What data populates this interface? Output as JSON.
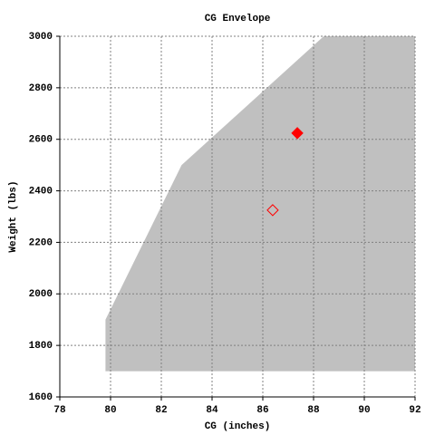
{
  "chart_data": {
    "type": "scatter",
    "title": "CG Envelope",
    "xlabel": "CG (inches)",
    "ylabel": "Weight (lbs)",
    "xlim": [
      78,
      92
    ],
    "ylim": [
      1600,
      3000
    ],
    "xticks": [
      78,
      80,
      82,
      84,
      86,
      88,
      90,
      92
    ],
    "yticks": [
      1600,
      1800,
      2000,
      2200,
      2400,
      2600,
      2800,
      3000
    ],
    "grid": true,
    "series": [
      {
        "style": "polygon",
        "color": "#c0c0c0",
        "x": [
          79.8,
          79.8,
          82.8,
          88.4,
          92,
          92
        ],
        "values": [
          1700,
          1900,
          2500,
          3000,
          3000,
          1700
        ]
      },
      {
        "style": "diamond-filled",
        "color": "#ff0000",
        "x": [
          87.36
        ],
        "values": [
          2624
        ]
      },
      {
        "style": "diamond-open",
        "color": "#ff0000",
        "x": [
          86.39
        ],
        "values": [
          2325
        ]
      }
    ]
  }
}
